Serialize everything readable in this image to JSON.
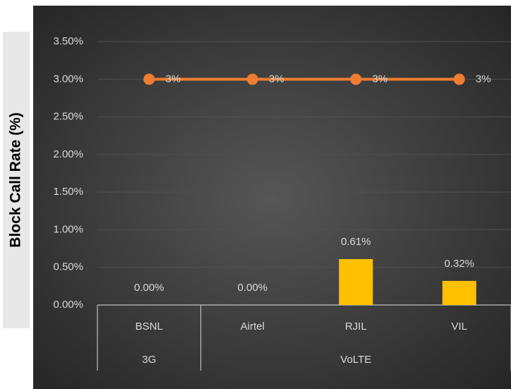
{
  "chart_data": {
    "type": "combo",
    "y_axis_label": "Block Call Rate (%)",
    "categories": [
      "BSNL",
      "Airtel",
      "RJIL",
      "VIL"
    ],
    "groups": [
      {
        "name": "3G",
        "count": 1
      },
      {
        "name": "VoLTE",
        "count": 3
      }
    ],
    "series": [
      {
        "type": "bar",
        "color": "#ffc000",
        "values": [
          0,
          0,
          0.61,
          0.32
        ],
        "value_labels": [
          "0.00%",
          "0.00%",
          "0.61%",
          "0.32%"
        ]
      },
      {
        "type": "line",
        "color": "#ed7d31",
        "values": [
          3,
          3,
          3,
          3
        ],
        "value_labels": [
          "3%",
          "3%",
          "3%",
          "3%"
        ]
      }
    ],
    "ylim": [
      0,
      3.5
    ],
    "yticks": [
      {
        "value": 0,
        "label": "0.00%"
      },
      {
        "value": 0.5,
        "label": "0.50%"
      },
      {
        "value": 1,
        "label": "1.00%"
      },
      {
        "value": 1.5,
        "label": "1.50%"
      },
      {
        "value": 2,
        "label": "2.00%"
      },
      {
        "value": 2.5,
        "label": "2.50%"
      },
      {
        "value": 3,
        "label": "3.00%"
      },
      {
        "value": 3.5,
        "label": "3.50%"
      }
    ],
    "grid": true
  }
}
